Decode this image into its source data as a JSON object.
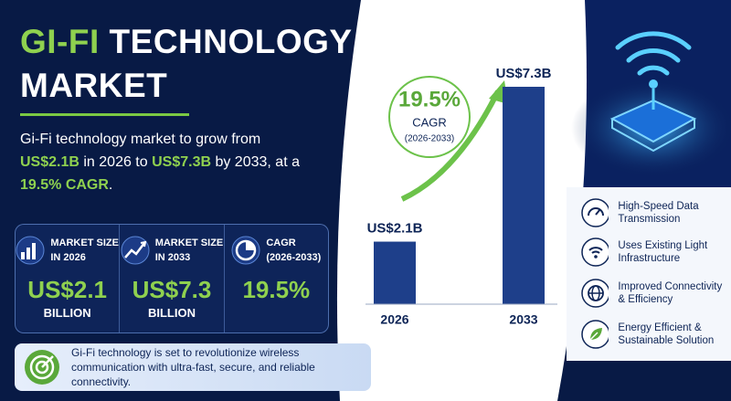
{
  "title": [
    {
      "text": "GI-FI",
      "highlight": true
    },
    {
      "text": " TECHNOLOGY MARKET",
      "highlight": false
    }
  ],
  "summary": [
    {
      "text": "Gi-Fi technology market to grow from ",
      "highlight": false
    },
    {
      "text": "US$2.1B",
      "highlight": true
    },
    {
      "text": " in 2026 to ",
      "highlight": false
    },
    {
      "text": "US$7.3B",
      "highlight": true
    },
    {
      "text": " by 2033, at a ",
      "highlight": false
    },
    {
      "text": "19.5% CAGR",
      "highlight": true
    },
    {
      "text": ".",
      "highlight": false
    }
  ],
  "stats": [
    {
      "label": [
        "MARKET SIZE",
        "IN 2026"
      ],
      "value": "US$2.1",
      "unit": "BILLION"
    },
    {
      "label": [
        "MARKET SIZE",
        "IN 2033"
      ],
      "value": "US$7.3",
      "unit": "BILLION"
    },
    {
      "label": [
        "CAGR",
        "(2026-2033)"
      ],
      "value": "19.5%"
    }
  ],
  "footer": "Gi-Fi technology is set to revolutionize wireless communication with ultra-fast, secure, and reliable connectivity.",
  "features": [
    "High-Speed Data Transmission",
    "Uses Existing Light Infrastructure",
    "Improved Connectivity & Efficiency",
    "Energy Efficient & Sustainable Solution"
  ],
  "chart_data": {
    "type": "bar",
    "categories": [
      "2026",
      "2033"
    ],
    "values": [
      2.1,
      7.3
    ],
    "value_labels": [
      "US$2.1B",
      "US$7.3B"
    ],
    "color": "#1e3f8a",
    "annotation": {
      "value": "19.5%",
      "label": "CAGR",
      "period": "(2026-2033)"
    }
  }
}
